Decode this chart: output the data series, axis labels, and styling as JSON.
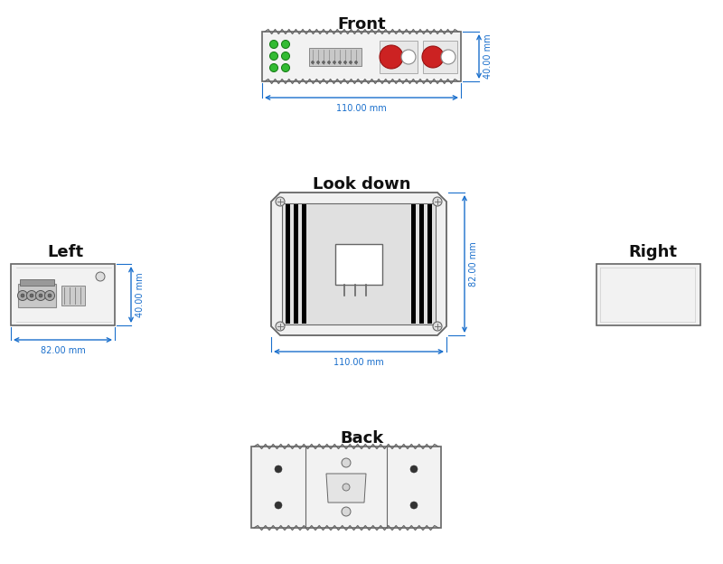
{
  "bg_color": "#ffffff",
  "line_color": "#666666",
  "dim_color": "#1a6fcc",
  "title_color": "#111111",
  "green_led": "#33bb33",
  "red_color": "#cc2222",
  "titles": {
    "front": "Front",
    "look_down": "Look down",
    "left": "Left",
    "right": "Right",
    "back": "Back"
  },
  "dims": {
    "front_width": "110.00 mm",
    "front_height": "40.00 mm",
    "left_width": "82.00 mm",
    "left_height": "40.00 mm",
    "top_width": "110.00 mm",
    "top_height": "82.00 mm"
  }
}
